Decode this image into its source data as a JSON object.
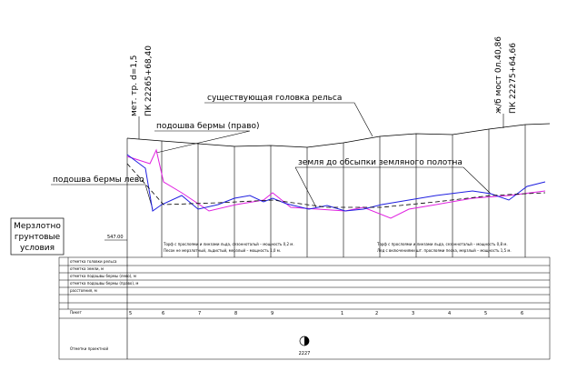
{
  "labels": {
    "culvert_type": "мет. тр. d=1,5",
    "culvert_pk": "ПК 22265+68,40",
    "bridge_type": "ж/б мост 0л.40,86",
    "bridge_pk": "ПК 22275+64,66",
    "rail_head": "существующая головка рельса",
    "berm_right": "подошва бермы (право)",
    "ground": "земля до обсыпки земляного полотна",
    "berm_left": "подошва бермы лево",
    "datum": "547.00",
    "marker": "2227"
  },
  "conditions_box": [
    "Мерзлотно",
    "грунтовые",
    "условия"
  ],
  "soil_left": [
    "Торф с прослоями и линзами льда, сезоннотальй – мощность 0,2 м.",
    "Песок не мерзлотный, льдистый, мерзлый – мощность 1,0 м."
  ],
  "soil_right": [
    "Торф с прослоями и линзами льда, сезоннотальй – мощность 0,8 м.",
    "Лед с включениями шт. прослоями песка, мерзлый – мощность 1,5 м."
  ],
  "table": {
    "row_labels": [
      "отметка головки рельса",
      "отметка земли, м",
      "отметка подошвы бермы (лево), м",
      "отметка подошвы бермы (право), м",
      "расстояния, м",
      "Пикет"
    ],
    "bottom_label": "Отметки проектной",
    "pickets": [
      "5",
      "6",
      "7",
      "8",
      "9",
      "1",
      "2",
      "3",
      "4",
      "5",
      "6"
    ]
  }
}
